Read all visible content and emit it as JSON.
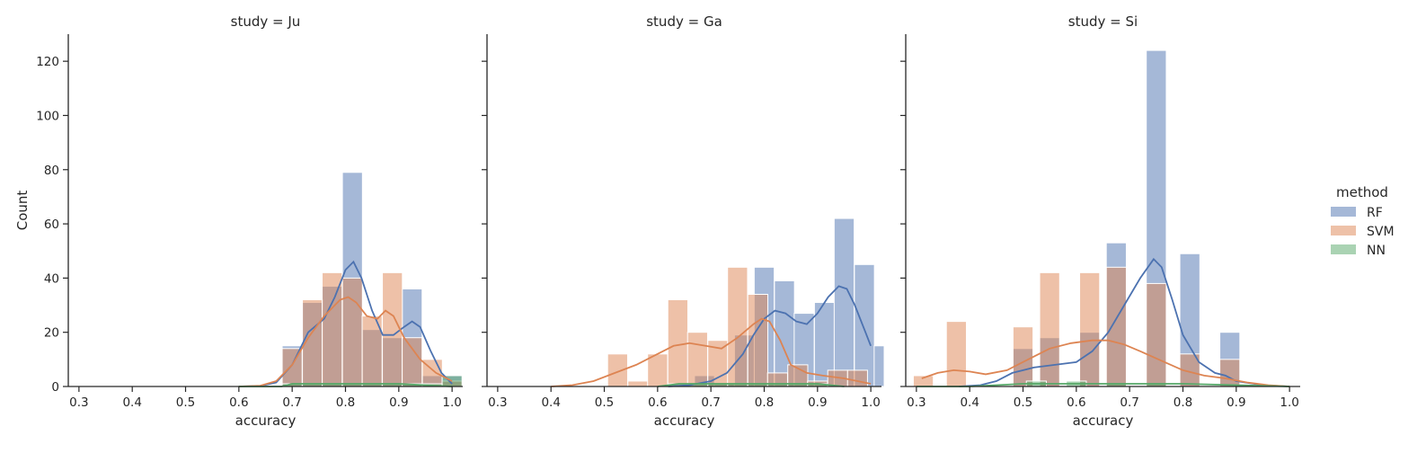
{
  "colors": {
    "RF": "#4C72B0",
    "SVM": "#DD8452",
    "NN": "#55A868"
  },
  "chart_data": {
    "type": "histogram",
    "ylabel": "Count",
    "ylim": [
      0,
      130
    ],
    "yticks": [
      0,
      20,
      40,
      60,
      80,
      100,
      120
    ],
    "xlim": [
      0.28,
      1.02
    ],
    "xticks": [
      "0.3",
      "0.4",
      "0.5",
      "0.6",
      "0.7",
      "0.8",
      "0.9",
      "1.0"
    ],
    "xlabel": "accuracy",
    "bin_width": 0.0375,
    "legend": {
      "title": "method",
      "entries": [
        "RF",
        "SVM",
        "NN"
      ],
      "placement": "right"
    },
    "panels": [
      {
        "title": "study = Ju",
        "series": [
          {
            "name": "RF",
            "bins": [
              [
                0.7,
                15
              ],
              [
                0.738,
                31
              ],
              [
                0.775,
                37
              ],
              [
                0.813,
                79
              ],
              [
                0.85,
                21
              ],
              [
                0.888,
                18
              ],
              [
                0.925,
                36
              ],
              [
                0.963,
                4
              ],
              [
                1.0,
                4
              ]
            ],
            "kde": [
              [
                0.6,
                0
              ],
              [
                0.64,
                0.2
              ],
              [
                0.67,
                1.5
              ],
              [
                0.7,
                8
              ],
              [
                0.73,
                20
              ],
              [
                0.76,
                25
              ],
              [
                0.78,
                33
              ],
              [
                0.8,
                43
              ],
              [
                0.815,
                46
              ],
              [
                0.83,
                40
              ],
              [
                0.85,
                28
              ],
              [
                0.87,
                19
              ],
              [
                0.89,
                19
              ],
              [
                0.91,
                22
              ],
              [
                0.925,
                24
              ],
              [
                0.94,
                22
              ],
              [
                0.96,
                13
              ],
              [
                0.98,
                5
              ],
              [
                1.0,
                1
              ]
            ]
          },
          {
            "name": "SVM",
            "bins": [
              [
                0.7,
                14
              ],
              [
                0.738,
                32
              ],
              [
                0.775,
                42
              ],
              [
                0.813,
                40
              ],
              [
                0.85,
                26
              ],
              [
                0.888,
                42
              ],
              [
                0.925,
                18
              ],
              [
                0.963,
                10
              ],
              [
                1.0,
                2
              ]
            ],
            "kde": [
              [
                0.6,
                0
              ],
              [
                0.64,
                0.3
              ],
              [
                0.67,
                2
              ],
              [
                0.7,
                8
              ],
              [
                0.73,
                18
              ],
              [
                0.76,
                26
              ],
              [
                0.79,
                32
              ],
              [
                0.805,
                33
              ],
              [
                0.82,
                31
              ],
              [
                0.84,
                26
              ],
              [
                0.86,
                25
              ],
              [
                0.875,
                28
              ],
              [
                0.89,
                26
              ],
              [
                0.91,
                18
              ],
              [
                0.94,
                10
              ],
              [
                0.97,
                5
              ],
              [
                1.0,
                2
              ]
            ]
          },
          {
            "name": "NN",
            "bins": [
              [
                0.7,
                1
              ],
              [
                0.738,
                1
              ],
              [
                0.775,
                1
              ],
              [
                0.813,
                1
              ],
              [
                0.85,
                1
              ],
              [
                0.888,
                1
              ],
              [
                0.925,
                1
              ],
              [
                0.963,
                1
              ],
              [
                1.0,
                4
              ]
            ],
            "kde": [
              [
                0.6,
                0
              ],
              [
                0.68,
                0
              ],
              [
                0.7,
                1
              ],
              [
                0.8,
                1
              ],
              [
                0.9,
                1
              ],
              [
                1.0,
                0
              ]
            ]
          }
        ]
      },
      {
        "title": "study = Ga",
        "series": [
          {
            "name": "RF",
            "bins": [
              [
                0.688,
                4
              ],
              [
                0.725,
                1
              ],
              [
                0.763,
                19
              ],
              [
                0.8,
                44
              ],
              [
                0.838,
                39
              ],
              [
                0.875,
                27
              ],
              [
                0.913,
                31
              ],
              [
                0.95,
                62
              ],
              [
                0.988,
                45
              ],
              [
                1.025,
                15
              ]
            ],
            "kde": [
              [
                0.62,
                0
              ],
              [
                0.66,
                0.5
              ],
              [
                0.7,
                2
              ],
              [
                0.73,
                5
              ],
              [
                0.76,
                12
              ],
              [
                0.78,
                19
              ],
              [
                0.8,
                25
              ],
              [
                0.82,
                28
              ],
              [
                0.84,
                27
              ],
              [
                0.86,
                24
              ],
              [
                0.88,
                23
              ],
              [
                0.9,
                27
              ],
              [
                0.92,
                33
              ],
              [
                0.94,
                37
              ],
              [
                0.955,
                36
              ],
              [
                0.97,
                30
              ],
              [
                0.99,
                20
              ],
              [
                1.0,
                15
              ]
            ]
          },
          {
            "name": "SVM",
            "bins": [
              [
                0.525,
                12
              ],
              [
                0.563,
                2
              ],
              [
                0.6,
                12
              ],
              [
                0.638,
                32
              ],
              [
                0.675,
                20
              ],
              [
                0.713,
                17
              ],
              [
                0.75,
                44
              ],
              [
                0.788,
                34
              ],
              [
                0.825,
                5
              ],
              [
                0.863,
                8
              ],
              [
                0.9,
                2
              ],
              [
                0.938,
                6
              ],
              [
                0.975,
                6
              ]
            ],
            "kde": [
              [
                0.4,
                0
              ],
              [
                0.44,
                0.5
              ],
              [
                0.48,
                2
              ],
              [
                0.52,
                5
              ],
              [
                0.56,
                8
              ],
              [
                0.6,
                12
              ],
              [
                0.63,
                15
              ],
              [
                0.66,
                16
              ],
              [
                0.69,
                15
              ],
              [
                0.72,
                14
              ],
              [
                0.75,
                18
              ],
              [
                0.78,
                23
              ],
              [
                0.795,
                25
              ],
              [
                0.81,
                24
              ],
              [
                0.83,
                17
              ],
              [
                0.85,
                8
              ],
              [
                0.88,
                5
              ],
              [
                0.91,
                4
              ],
              [
                0.95,
                3
              ],
              [
                1.0,
                1
              ]
            ]
          },
          {
            "name": "NN",
            "bins": [
              [
                0.638,
                1
              ],
              [
                0.675,
                1
              ],
              [
                0.713,
                1
              ],
              [
                0.75,
                1
              ],
              [
                0.788,
                1
              ],
              [
                0.825,
                1
              ],
              [
                0.863,
                1
              ],
              [
                0.9,
                1
              ]
            ],
            "kde": [
              [
                0.6,
                0
              ],
              [
                0.64,
                1
              ],
              [
                0.9,
                1
              ],
              [
                0.95,
                0
              ]
            ]
          }
        ]
      },
      {
        "title": "study = Si",
        "series": [
          {
            "name": "RF",
            "bins": [
              [
                0.5,
                14
              ],
              [
                0.55,
                18
              ],
              [
                0.625,
                20
              ],
              [
                0.675,
                53
              ],
              [
                0.75,
                124
              ],
              [
                0.813,
                49
              ],
              [
                0.888,
                20
              ]
            ],
            "kde": [
              [
                0.38,
                0
              ],
              [
                0.42,
                0.5
              ],
              [
                0.45,
                2
              ],
              [
                0.48,
                5
              ],
              [
                0.52,
                7
              ],
              [
                0.56,
                8
              ],
              [
                0.6,
                9
              ],
              [
                0.63,
                13
              ],
              [
                0.66,
                20
              ],
              [
                0.69,
                30
              ],
              [
                0.72,
                40
              ],
              [
                0.745,
                47
              ],
              [
                0.76,
                44
              ],
              [
                0.78,
                32
              ],
              [
                0.8,
                19
              ],
              [
                0.83,
                9
              ],
              [
                0.86,
                5
              ],
              [
                0.88,
                4
              ],
              [
                0.9,
                2
              ],
              [
                0.95,
                0.5
              ],
              [
                1.0,
                0
              ]
            ]
          },
          {
            "name": "SVM",
            "bins": [
              [
                0.313,
                4
              ],
              [
                0.375,
                24
              ],
              [
                0.5,
                22
              ],
              [
                0.55,
                42
              ],
              [
                0.625,
                42
              ],
              [
                0.675,
                44
              ],
              [
                0.75,
                38
              ],
              [
                0.813,
                12
              ],
              [
                0.888,
                10
              ]
            ],
            "kde": [
              [
                0.31,
                3
              ],
              [
                0.34,
                5
              ],
              [
                0.37,
                6
              ],
              [
                0.4,
                5.5
              ],
              [
                0.43,
                4.5
              ],
              [
                0.47,
                6
              ],
              [
                0.51,
                10
              ],
              [
                0.55,
                14
              ],
              [
                0.59,
                16
              ],
              [
                0.63,
                17
              ],
              [
                0.66,
                17
              ],
              [
                0.69,
                15.5
              ],
              [
                0.72,
                13
              ],
              [
                0.76,
                9.5
              ],
              [
                0.8,
                6
              ],
              [
                0.84,
                4
              ],
              [
                0.88,
                3
              ],
              [
                0.92,
                1.5
              ],
              [
                0.96,
                0.5
              ],
              [
                1.0,
                0
              ]
            ]
          },
          {
            "name": "NN",
            "bins": [
              [
                0.525,
                2
              ],
              [
                0.6,
                2
              ],
              [
                0.675,
                1
              ],
              [
                0.75,
                1
              ]
            ],
            "kde": [
              [
                0.3,
                0
              ],
              [
                0.4,
                0
              ],
              [
                0.5,
                1
              ],
              [
                0.8,
                1
              ],
              [
                1.0,
                0
              ]
            ]
          }
        ]
      }
    ]
  }
}
